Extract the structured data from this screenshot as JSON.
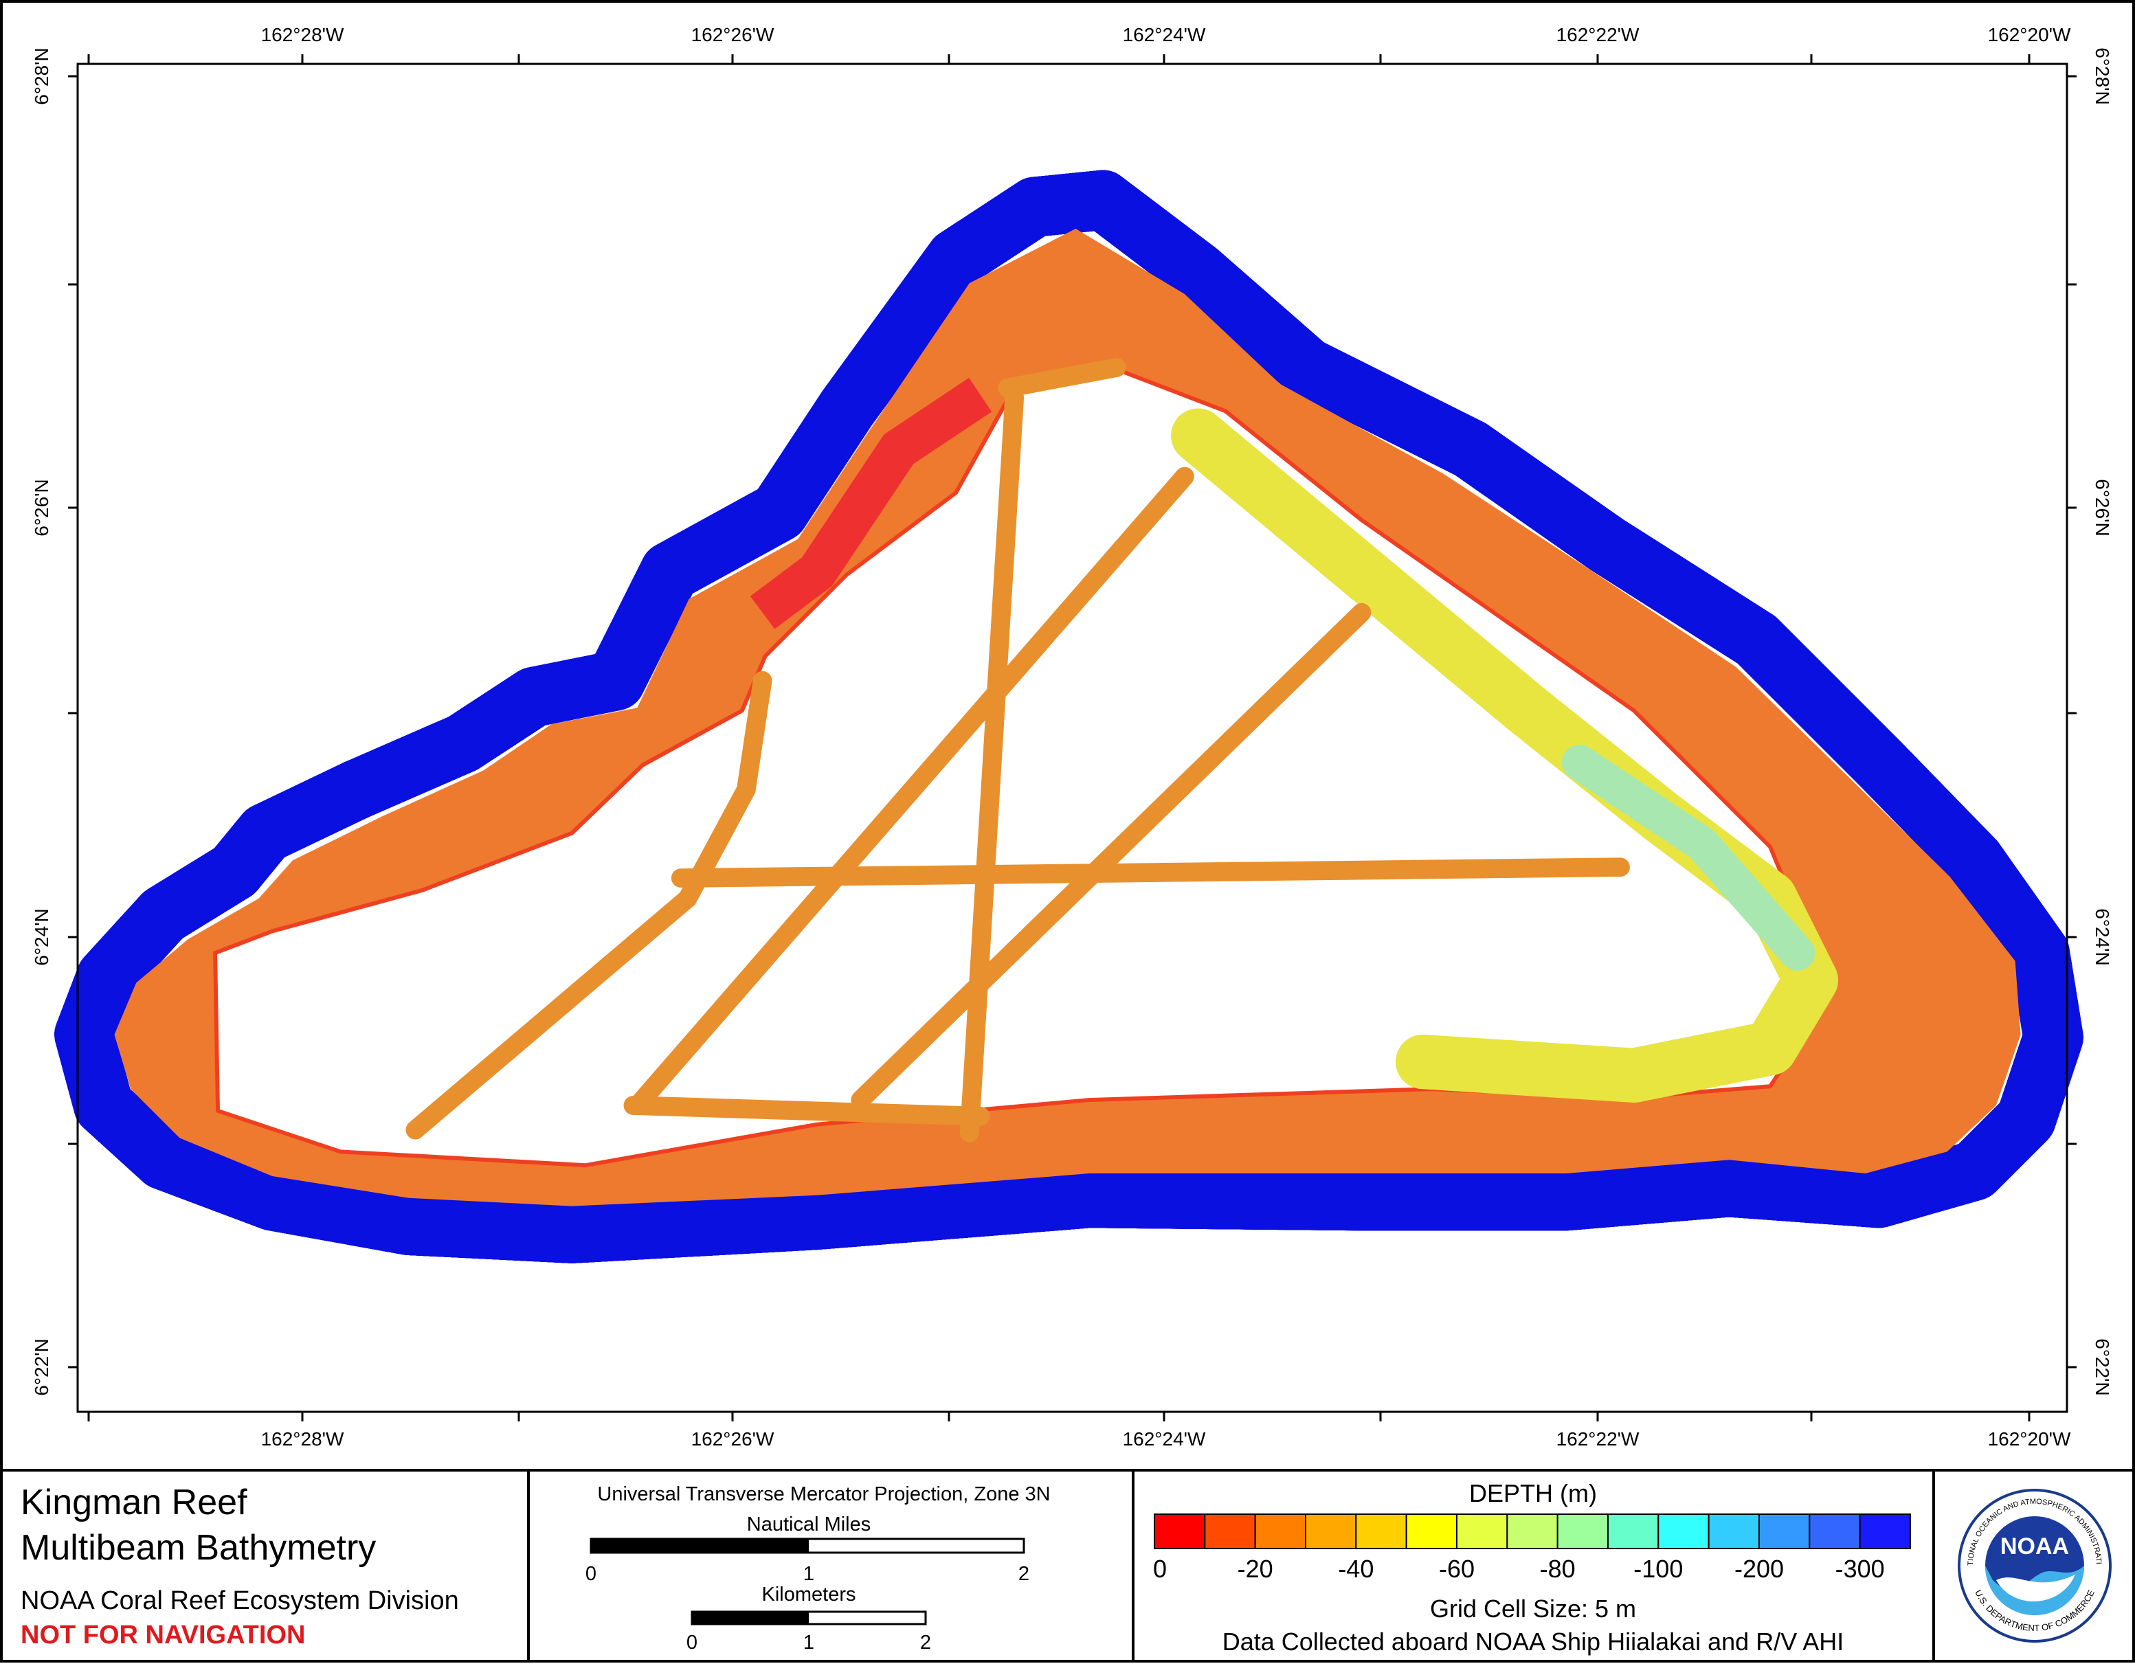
{
  "map": {
    "lon_ticks": [
      "162°28'W",
      "162°26'W",
      "162°24'W",
      "162°22'W",
      "162°20'W"
    ],
    "lat_ticks": [
      "6°28'N",
      "6°26'N",
      "6°24'N",
      "6°22'N"
    ]
  },
  "title_block": {
    "title": "Kingman Reef",
    "subtitle": "Multibeam Bathymetry",
    "organization": "NOAA Coral Reef Ecosystem Division",
    "warning": "NOT FOR NAVIGATION"
  },
  "scale_block": {
    "projection": "Universal Transverse Mercator Projection, Zone 3N",
    "nautical_miles": {
      "title": "Nautical Miles",
      "labels": [
        "0",
        "1",
        "2"
      ]
    },
    "kilometers": {
      "title": "Kilometers",
      "labels": [
        "0",
        "1",
        "2"
      ]
    }
  },
  "legend": {
    "title": "DEPTH (m)",
    "colors": [
      "#ff0000",
      "#ff4a00",
      "#ff7f00",
      "#ffa800",
      "#ffd000",
      "#ffff00",
      "#e6ff40",
      "#c8ff70",
      "#9cff9c",
      "#66ffcc",
      "#33ffff",
      "#33ccff",
      "#3399ff",
      "#3366ff",
      "#1a1aff"
    ],
    "labels": [
      "0",
      "-20",
      "-40",
      "-60",
      "-80",
      "-100",
      "-200",
      "-300"
    ],
    "grid_cell": "Grid Cell Size: 5 m",
    "source": "Data Collected aboard NOAA Ship Hiialakai and R/V AHI"
  },
  "logo": {
    "name": "NOAA",
    "ring_top": "NATIONAL OCEANIC AND ATMOSPHERIC ADMINISTRATION",
    "ring_bottom": "U.S. DEPARTMENT OF COMMERCE"
  }
}
